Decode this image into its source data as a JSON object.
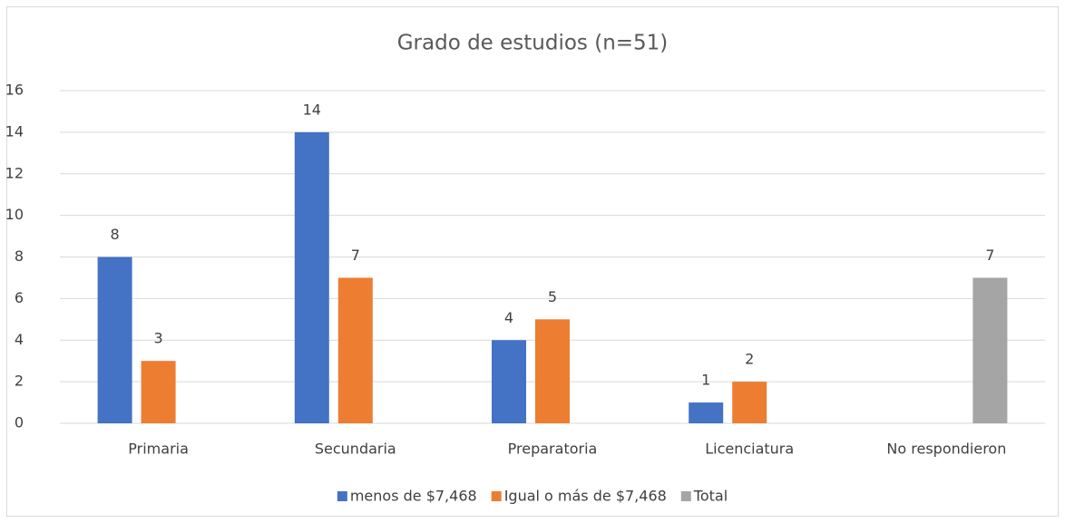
{
  "chart_data": {
    "type": "bar",
    "title": "Grado de estudios (n=51)",
    "categories": [
      "Primaria",
      "Secundaria",
      "Preparatoria",
      "Licenciatura",
      "No respondieron"
    ],
    "series": [
      {
        "name": "menos de $7,468",
        "color": "#4472c4",
        "values": [
          8,
          14,
          4,
          1,
          null
        ]
      },
      {
        "name": "Igual o más de $7,468",
        "color": "#ed7d31",
        "values": [
          3,
          7,
          5,
          2,
          null
        ]
      },
      {
        "name": "Total",
        "color": "#a5a5a5",
        "values": [
          null,
          null,
          null,
          null,
          7
        ]
      }
    ],
    "ylim": [
      0,
      16
    ],
    "yticks": [
      0,
      2,
      4,
      6,
      8,
      10,
      12,
      14,
      16
    ],
    "grid": true,
    "legend": "bottom"
  }
}
